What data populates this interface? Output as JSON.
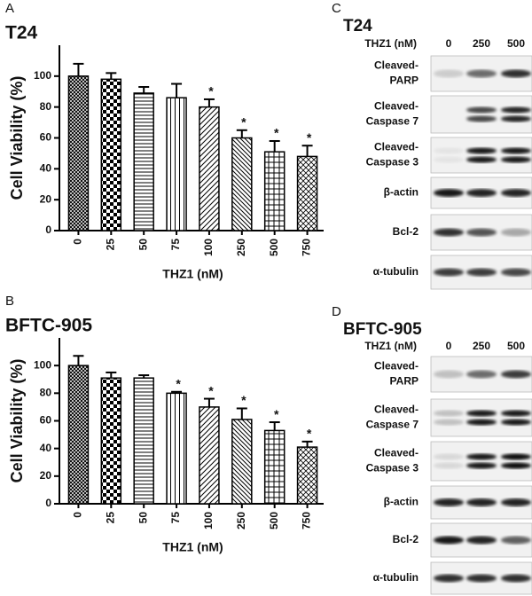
{
  "chart_data": [
    {
      "type": "bar",
      "panel_label": "A",
      "title": "T24",
      "y_label": "Cell Viability (%)",
      "x_label": "THZ1 (nM)",
      "categories": [
        "0",
        "25",
        "50",
        "75",
        "100",
        "250",
        "500",
        "750"
      ],
      "values": [
        100,
        98,
        89,
        86,
        80,
        60,
        51,
        48
      ],
      "errors": [
        8,
        4,
        4,
        9,
        5,
        5,
        7,
        7
      ],
      "significance": [
        null,
        null,
        null,
        null,
        "*",
        "*",
        "*",
        "*"
      ],
      "color": "#000000",
      "ylim": [
        0,
        120
      ],
      "yticks": [
        0,
        20,
        40,
        60,
        80,
        100
      ]
    },
    {
      "type": "bar",
      "panel_label": "B",
      "title": "BFTC-905",
      "y_label": "Cell Viability (%)",
      "x_label": "THZ1 (nM)",
      "categories": [
        "0",
        "25",
        "50",
        "75",
        "100",
        "250",
        "500",
        "750"
      ],
      "values": [
        100,
        91,
        91,
        80,
        70,
        61,
        53,
        41
      ],
      "errors": [
        7,
        4,
        2,
        1,
        6,
        8,
        6,
        4
      ],
      "significance": [
        null,
        null,
        null,
        "*",
        "*",
        "*",
        "*",
        "*"
      ],
      "color": "#000000",
      "ylim": [
        0,
        120
      ],
      "yticks": [
        0,
        20,
        40,
        60,
        80,
        100
      ]
    }
  ],
  "blots": [
    {
      "panel_label": "C",
      "title": "T24",
      "dose_label": "THZ1 (nM)",
      "lanes": [
        "0",
        "250",
        "500"
      ],
      "rows": [
        [
          "Cleaved-",
          "PARP"
        ],
        [
          "Cleaved-",
          "Caspase 7"
        ],
        [
          "Cleaved-",
          "Caspase 3"
        ],
        [
          "β-actin"
        ],
        [
          "Bcl-2"
        ],
        [
          "α-tubulin"
        ]
      ]
    },
    {
      "panel_label": "D",
      "title": "BFTC-905",
      "dose_label": "THZ1 (nM)",
      "lanes": [
        "0",
        "250",
        "500"
      ],
      "rows": [
        [
          "Cleaved-",
          "PARP"
        ],
        [
          "Cleaved-",
          "Caspase 7"
        ],
        [
          "Cleaved-",
          "Caspase 3"
        ],
        [
          "β-actin"
        ],
        [
          "Bcl-2"
        ],
        [
          "α-tubulin"
        ]
      ]
    }
  ]
}
